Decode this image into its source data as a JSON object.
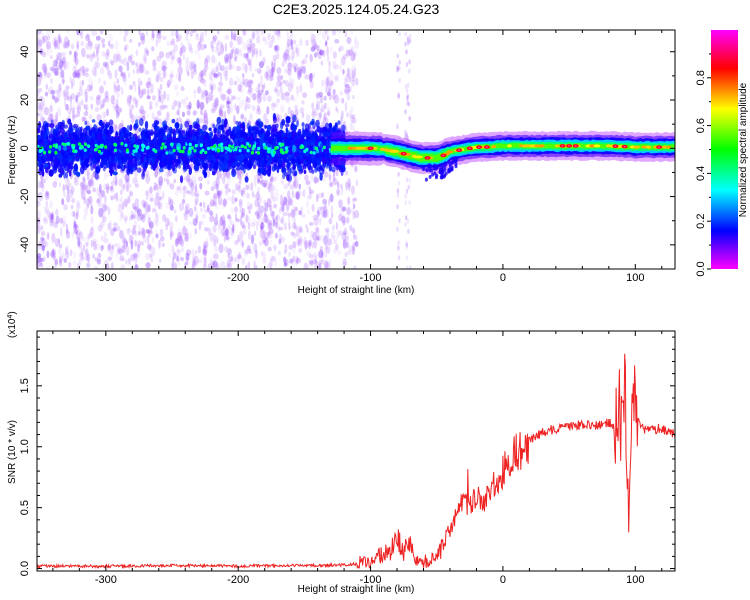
{
  "figure": {
    "title": "C2E3.2025.124.05.24.G23"
  },
  "chart_data": [
    {
      "type": "heatmap",
      "title": "",
      "xlabel": "Height of straight line (km)",
      "ylabel": "Frequency (Hz)",
      "xlim": [
        -352,
        130
      ],
      "ylim": [
        -50,
        49
      ],
      "xticks": [
        -300,
        -200,
        -100,
        0,
        100
      ],
      "yticks": [
        -40,
        -20,
        0,
        20,
        40
      ],
      "grid": false,
      "colorbar": {
        "label": "Normalized spectral amplitude",
        "range": [
          0,
          1
        ],
        "ticks": [
          "0.0",
          "0.2",
          "0.4",
          "0.6",
          "0.8"
        ],
        "colormap": [
          "#ff00ff",
          "#0000ff",
          "#00ffff",
          "#00ff00",
          "#ffff00",
          "#ff0000",
          "#ff00ff"
        ]
      },
      "signal_centerline": {
        "x": [
          -352,
          -130,
          -110,
          -95,
          -80,
          -70,
          -60,
          -50,
          -45,
          -40,
          -30,
          -20,
          -10,
          0,
          20,
          40,
          60,
          80,
          100,
          130
        ],
        "y": [
          0,
          0,
          0,
          0,
          -1.5,
          -3,
          -4,
          -4,
          -3,
          -1.5,
          -0.5,
          0.5,
          0.5,
          1,
          1,
          1,
          1,
          1,
          0.5,
          0.5
        ]
      },
      "high_amplitude_spots_x": [
        -100,
        -75,
        -57,
        -45,
        -33,
        -25,
        -18,
        -12,
        45,
        50,
        55,
        85,
        92,
        118
      ]
    },
    {
      "type": "line",
      "title": "",
      "xlabel": "Height of straight line (km)",
      "ylabel": "SNR (10 * v/v)",
      "y_multiplier_label": "(x10",
      "y_multiplier_exp": "4",
      "y_multiplier_close": ")",
      "xlim": [
        -352,
        130
      ],
      "ylim": [
        -0.02,
        1.95
      ],
      "xticks": [
        -300,
        -200,
        -100,
        0,
        100
      ],
      "yticks": [
        0.0,
        0.5,
        1.0,
        1.5
      ],
      "ytick_labels": [
        "0.0",
        "0.5",
        "1.0",
        "1.5"
      ],
      "grid": false,
      "series": [
        {
          "color": "#ee2222",
          "x": [
            -352,
            -300,
            -250,
            -200,
            -150,
            -120,
            -110,
            -100,
            -95,
            -90,
            -85,
            -80,
            -75,
            -70,
            -65,
            -60,
            -55,
            -50,
            -45,
            -40,
            -35,
            -30,
            -25,
            -20,
            -15,
            -10,
            -5,
            0,
            5,
            10,
            20,
            30,
            40,
            50,
            60,
            70,
            80,
            85,
            88,
            90,
            92,
            95,
            98,
            100,
            105,
            110,
            120,
            130
          ],
          "y": [
            0.02,
            0.02,
            0.025,
            0.02,
            0.025,
            0.03,
            0.04,
            0.06,
            0.08,
            0.12,
            0.15,
            0.25,
            0.15,
            0.22,
            0.08,
            0.05,
            0.07,
            0.12,
            0.18,
            0.3,
            0.45,
            0.55,
            0.5,
            0.6,
            0.55,
            0.65,
            0.72,
            0.8,
            0.87,
            0.95,
            1.05,
            1.12,
            1.15,
            1.17,
            1.18,
            1.17,
            1.2,
            1.15,
            1.35,
            1.05,
            1.5,
            0.4,
            1.6,
            1.25,
            1.15,
            1.14,
            1.15,
            1.1
          ]
        }
      ]
    }
  ]
}
